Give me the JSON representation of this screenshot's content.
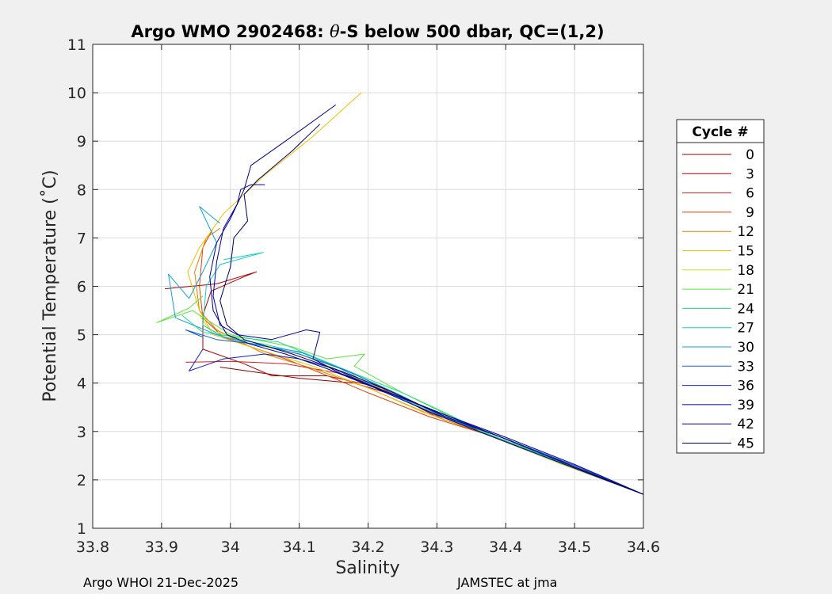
{
  "chart_data": {
    "type": "line",
    "title_prefix": "Argo WMO 2902468: ",
    "title_symbol": "θ",
    "title_suffix": "-S below 500 dbar,  QC=(1,2)",
    "xlabel": "Salinity",
    "ylabel": "Potential Temperature (˚C)",
    "xlim": [
      33.8,
      34.6
    ],
    "ylim": [
      1,
      11
    ],
    "xticks": [
      "33.8",
      "33.9",
      "34",
      "34.1",
      "34.2",
      "34.3",
      "34.4",
      "34.5",
      "34.6"
    ],
    "yticks": [
      "1",
      "2",
      "3",
      "4",
      "5",
      "6",
      "7",
      "8",
      "9",
      "10",
      "11"
    ],
    "grid": true,
    "legend": {
      "title": "Cycle #",
      "placement": "outside-right",
      "entries": [
        {
          "label": "0",
          "color": "#8b0000"
        },
        {
          "label": "3",
          "color": "#b00000"
        },
        {
          "label": "6",
          "color": "#d42020"
        },
        {
          "label": "9",
          "color": "#e04000"
        },
        {
          "label": "12",
          "color": "#e08000"
        },
        {
          "label": "15",
          "color": "#f0c000"
        },
        {
          "label": "18",
          "color": "#c8e020"
        },
        {
          "label": "21",
          "color": "#60e040"
        },
        {
          "label": "24",
          "color": "#20e080"
        },
        {
          "label": "27",
          "color": "#10d0c0"
        },
        {
          "label": "30",
          "color": "#10a0e0"
        },
        {
          "label": "33",
          "color": "#1060d0"
        },
        {
          "label": "36",
          "color": "#1020c0"
        },
        {
          "label": "39",
          "color": "#0000a0"
        },
        {
          "label": "42",
          "color": "#000080"
        },
        {
          "label": "45",
          "color": "#000060"
        }
      ]
    },
    "series": [
      {
        "name": "0",
        "color": "#8b0000",
        "points": [
          [
            34.6,
            1.7
          ],
          [
            34.5,
            2.3
          ],
          [
            34.4,
            2.8
          ],
          [
            34.33,
            3.2
          ],
          [
            34.25,
            3.7
          ],
          [
            34.18,
            4.0
          ],
          [
            34.1,
            4.1
          ],
          [
            34.05,
            4.2
          ],
          [
            33.985,
            4.33
          ]
        ]
      },
      {
        "name": "3",
        "color": "#b00000",
        "points": [
          [
            34.6,
            1.7
          ],
          [
            34.48,
            2.35
          ],
          [
            34.38,
            2.9
          ],
          [
            34.3,
            3.3
          ],
          [
            34.22,
            3.9
          ],
          [
            34.14,
            4.15
          ],
          [
            34.06,
            4.15
          ],
          [
            34.02,
            4.4
          ],
          [
            33.96,
            4.7
          ],
          [
            33.96,
            5.4
          ],
          [
            33.972,
            5.9
          ],
          [
            34.02,
            6.2
          ],
          [
            34.038,
            6.3
          ],
          [
            33.98,
            6.05
          ],
          [
            33.905,
            5.95
          ]
        ]
      },
      {
        "name": "6",
        "color": "#d42020",
        "points": [
          [
            34.6,
            1.7
          ],
          [
            34.49,
            2.3
          ],
          [
            34.39,
            2.85
          ],
          [
            34.31,
            3.25
          ],
          [
            34.23,
            3.85
          ],
          [
            34.16,
            4.2
          ],
          [
            34.08,
            4.4
          ],
          [
            34.0,
            4.45
          ],
          [
            33.935,
            4.43
          ]
        ]
      },
      {
        "name": "9",
        "color": "#e04000",
        "points": [
          [
            34.6,
            1.7
          ],
          [
            34.48,
            2.33
          ],
          [
            34.37,
            2.95
          ],
          [
            34.29,
            3.3
          ],
          [
            34.2,
            3.8
          ],
          [
            34.15,
            4.1
          ],
          [
            34.08,
            4.5
          ],
          [
            33.99,
            4.95
          ],
          [
            33.96,
            5.35
          ],
          [
            33.955,
            6.0
          ],
          [
            33.96,
            6.8
          ],
          [
            33.975,
            7.2
          ]
        ]
      },
      {
        "name": "12",
        "color": "#e08000",
        "points": [
          [
            34.6,
            1.7
          ],
          [
            34.49,
            2.3
          ],
          [
            34.38,
            2.9
          ],
          [
            34.29,
            3.35
          ],
          [
            34.2,
            3.9
          ],
          [
            34.12,
            4.3
          ],
          [
            34.05,
            4.6
          ],
          [
            33.98,
            5.1
          ],
          [
            33.955,
            5.5
          ],
          [
            33.948,
            6.3
          ],
          [
            33.965,
            7.0
          ],
          [
            33.985,
            7.2
          ]
        ]
      },
      {
        "name": "15",
        "color": "#f0c000",
        "points": [
          [
            34.6,
            1.7
          ],
          [
            34.49,
            2.33
          ],
          [
            34.38,
            2.92
          ],
          [
            34.28,
            3.4
          ],
          [
            34.2,
            3.9
          ],
          [
            34.12,
            4.35
          ],
          [
            34.04,
            4.7
          ],
          [
            33.975,
            5.0
          ],
          [
            33.955,
            5.5
          ],
          [
            33.938,
            6.3
          ],
          [
            33.955,
            6.8
          ],
          [
            33.99,
            7.5
          ],
          [
            34.05,
            8.3
          ],
          [
            34.12,
            9.1
          ],
          [
            34.19,
            10.0
          ]
        ]
      },
      {
        "name": "18",
        "color": "#c8e020",
        "points": [
          [
            34.6,
            1.7
          ],
          [
            34.48,
            2.33
          ],
          [
            34.38,
            2.9
          ],
          [
            34.3,
            3.35
          ],
          [
            34.24,
            3.75
          ],
          [
            34.16,
            4.25
          ],
          [
            34.1,
            4.6
          ],
          [
            34.03,
            4.85
          ],
          [
            33.97,
            5.1
          ],
          [
            33.955,
            5.4
          ]
        ]
      },
      {
        "name": "21",
        "color": "#60e040",
        "points": [
          [
            34.6,
            1.7
          ],
          [
            34.48,
            2.35
          ],
          [
            34.38,
            2.9
          ],
          [
            34.3,
            3.45
          ],
          [
            34.25,
            3.8
          ],
          [
            34.18,
            4.35
          ],
          [
            34.195,
            4.6
          ],
          [
            34.14,
            4.5
          ],
          [
            34.09,
            4.75
          ],
          [
            34.0,
            5.0
          ],
          [
            33.945,
            5.5
          ],
          [
            33.893,
            5.25
          ],
          [
            33.94,
            5.55
          ],
          [
            33.96,
            5.8
          ]
        ]
      },
      {
        "name": "24",
        "color": "#20e080",
        "points": [
          [
            34.6,
            1.7
          ],
          [
            34.49,
            2.32
          ],
          [
            34.38,
            2.92
          ],
          [
            34.31,
            3.4
          ],
          [
            34.25,
            3.8
          ],
          [
            34.18,
            4.2
          ],
          [
            34.12,
            4.55
          ],
          [
            34.07,
            4.85
          ],
          [
            34.01,
            4.95
          ],
          [
            33.96,
            5.05
          ],
          [
            33.93,
            5.4
          ]
        ]
      },
      {
        "name": "27",
        "color": "#10d0c0",
        "points": [
          [
            34.6,
            1.7
          ],
          [
            34.49,
            2.32
          ],
          [
            34.38,
            2.9
          ],
          [
            34.31,
            3.3
          ],
          [
            34.24,
            3.8
          ],
          [
            34.17,
            4.25
          ],
          [
            34.11,
            4.6
          ],
          [
            34.05,
            4.8
          ],
          [
            33.99,
            4.95
          ],
          [
            33.96,
            5.2
          ],
          [
            33.965,
            6.0
          ],
          [
            33.985,
            6.45
          ],
          [
            34.048,
            6.7
          ],
          [
            33.99,
            6.55
          ]
        ]
      },
      {
        "name": "30",
        "color": "#10a0e0",
        "points": [
          [
            34.6,
            1.7
          ],
          [
            34.49,
            2.3
          ],
          [
            34.38,
            2.9
          ],
          [
            34.3,
            3.35
          ],
          [
            34.22,
            3.85
          ],
          [
            34.16,
            4.3
          ],
          [
            34.1,
            4.65
          ],
          [
            34.03,
            4.8
          ],
          [
            33.98,
            5.0
          ],
          [
            33.92,
            5.35
          ],
          [
            33.91,
            6.25
          ],
          [
            33.94,
            5.75
          ],
          [
            33.96,
            6.3
          ],
          [
            33.98,
            6.9
          ],
          [
            33.955,
            7.65
          ],
          [
            33.985,
            7.3
          ]
        ]
      },
      {
        "name": "33",
        "color": "#1060d0",
        "points": [
          [
            34.6,
            1.7
          ],
          [
            34.5,
            2.3
          ],
          [
            34.4,
            2.85
          ],
          [
            34.31,
            3.3
          ],
          [
            34.23,
            3.85
          ],
          [
            34.17,
            4.25
          ],
          [
            34.1,
            4.6
          ],
          [
            34.04,
            4.8
          ],
          [
            33.98,
            4.9
          ],
          [
            33.935,
            5.1
          ],
          [
            33.96,
            4.95
          ]
        ]
      },
      {
        "name": "36",
        "color": "#1020c0",
        "points": [
          [
            34.6,
            1.7
          ],
          [
            34.49,
            2.33
          ],
          [
            34.39,
            2.9
          ],
          [
            34.31,
            3.35
          ],
          [
            34.22,
            3.85
          ],
          [
            34.15,
            4.3
          ],
          [
            34.1,
            4.5
          ],
          [
            34.05,
            4.6
          ],
          [
            33.99,
            4.5
          ],
          [
            33.94,
            4.25
          ],
          [
            33.96,
            4.7
          ]
        ]
      },
      {
        "name": "39",
        "color": "#0000a0",
        "points": [
          [
            34.6,
            1.7
          ],
          [
            34.5,
            2.32
          ],
          [
            34.4,
            2.88
          ],
          [
            34.32,
            3.3
          ],
          [
            34.24,
            3.75
          ],
          [
            34.16,
            4.2
          ],
          [
            34.12,
            4.5
          ],
          [
            34.13,
            5.05
          ],
          [
            34.11,
            5.1
          ],
          [
            34.06,
            4.9
          ],
          [
            34.01,
            5.0
          ],
          [
            33.985,
            5.2
          ],
          [
            33.975,
            5.8
          ],
          [
            33.98,
            6.5
          ],
          [
            33.99,
            7.2
          ],
          [
            34.01,
            7.7
          ],
          [
            34.015,
            8.0
          ],
          [
            34.03,
            8.1
          ],
          [
            34.05,
            8.1
          ]
        ]
      },
      {
        "name": "42",
        "color": "#000080",
        "points": [
          [
            34.6,
            1.7
          ],
          [
            34.48,
            2.35
          ],
          [
            34.37,
            2.95
          ],
          [
            34.29,
            3.4
          ],
          [
            34.21,
            3.9
          ],
          [
            34.14,
            4.3
          ],
          [
            34.08,
            4.6
          ],
          [
            34.03,
            4.8
          ],
          [
            33.995,
            5.0
          ],
          [
            33.975,
            5.5
          ],
          [
            33.97,
            6.2
          ],
          [
            33.98,
            6.9
          ],
          [
            34.0,
            7.4
          ],
          [
            34.02,
            8.0
          ],
          [
            34.03,
            8.5
          ],
          [
            34.08,
            9.0
          ],
          [
            34.153,
            9.75
          ]
        ]
      },
      {
        "name": "45",
        "color": "#000060",
        "points": [
          [
            34.6,
            1.7
          ],
          [
            34.49,
            2.32
          ],
          [
            34.39,
            2.9
          ],
          [
            34.31,
            3.32
          ],
          [
            34.23,
            3.85
          ],
          [
            34.16,
            4.25
          ],
          [
            34.09,
            4.6
          ],
          [
            34.02,
            4.9
          ],
          [
            33.995,
            5.2
          ],
          [
            33.985,
            5.7
          ],
          [
            34.0,
            6.4
          ],
          [
            34.005,
            7.0
          ],
          [
            34.025,
            7.35
          ],
          [
            34.02,
            7.9
          ],
          [
            34.04,
            8.2
          ],
          [
            34.09,
            8.8
          ],
          [
            34.13,
            9.35
          ]
        ]
      }
    ]
  },
  "footer": {
    "left": "Argo WHOI 21-Dec-2025",
    "right": "JAMSTEC at jma"
  }
}
